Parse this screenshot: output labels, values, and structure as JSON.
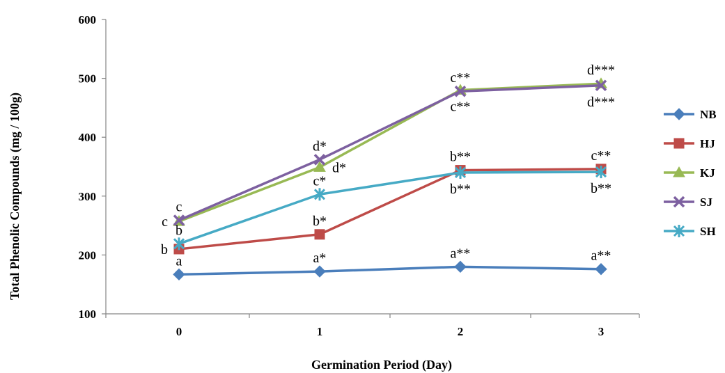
{
  "chart_data": {
    "type": "line",
    "title": "",
    "xlabel": "Germination Period (Day)",
    "ylabel": "Total Phenolic Compounds (mg / 100g)",
    "x": [
      0,
      1,
      2,
      3
    ],
    "x_tick_labels": [
      "0",
      "1",
      "2",
      "3"
    ],
    "ylim": [
      100,
      600
    ],
    "y_ticks": [
      100,
      200,
      300,
      400,
      500,
      600
    ],
    "grid": false,
    "legend_position": "right",
    "series": [
      {
        "name": "NB",
        "color": "#4A7EBB",
        "marker": "diamond",
        "values": [
          167,
          172,
          180,
          176
        ]
      },
      {
        "name": "HJ",
        "color": "#BE4B48",
        "marker": "square",
        "values": [
          210,
          235,
          344,
          346
        ]
      },
      {
        "name": "KJ",
        "color": "#98B954",
        "marker": "triangle",
        "values": [
          257,
          349,
          480,
          491
        ]
      },
      {
        "name": "SJ",
        "color": "#7D60A0",
        "marker": "x",
        "values": [
          259,
          362,
          478,
          488
        ]
      },
      {
        "name": "SH",
        "color": "#46AAC5",
        "marker": "star",
        "values": [
          219,
          303,
          340,
          341
        ]
      }
    ],
    "annotations": [
      {
        "text": "a",
        "x": 0,
        "y": 167,
        "pos": "above"
      },
      {
        "text": "a*",
        "x": 1,
        "y": 172,
        "pos": "above"
      },
      {
        "text": "a**",
        "x": 2,
        "y": 180,
        "pos": "above"
      },
      {
        "text": "a**",
        "x": 3,
        "y": 176,
        "pos": "above"
      },
      {
        "text": "b",
        "x": 0,
        "y": 210,
        "pos": "left"
      },
      {
        "text": "b*",
        "x": 1,
        "y": 235,
        "pos": "above"
      },
      {
        "text": "b**",
        "x": 2,
        "y": 344,
        "pos": "above"
      },
      {
        "text": "c**",
        "x": 3,
        "y": 346,
        "pos": "above"
      },
      {
        "text": "b",
        "x": 0,
        "y": 219,
        "pos": "above"
      },
      {
        "text": "c*",
        "x": 1,
        "y": 303,
        "pos": "above"
      },
      {
        "text": "b**",
        "x": 2,
        "y": 340,
        "pos": "below"
      },
      {
        "text": "b**",
        "x": 3,
        "y": 341,
        "pos": "below"
      },
      {
        "text": "c",
        "x": 0,
        "y": 257,
        "pos": "left"
      },
      {
        "text": "d*",
        "x": 1,
        "y": 349,
        "pos": "right"
      },
      {
        "text": "c**",
        "x": 2,
        "y": 480,
        "pos": "below"
      },
      {
        "text": "d***",
        "x": 3,
        "y": 491,
        "pos": "above"
      },
      {
        "text": "c",
        "x": 0,
        "y": 259,
        "pos": "above"
      },
      {
        "text": "d*",
        "x": 1,
        "y": 362,
        "pos": "above"
      },
      {
        "text": "c**",
        "x": 2,
        "y": 478,
        "pos": "above"
      },
      {
        "text": "d***",
        "x": 3,
        "y": 488,
        "pos": "below"
      }
    ]
  }
}
